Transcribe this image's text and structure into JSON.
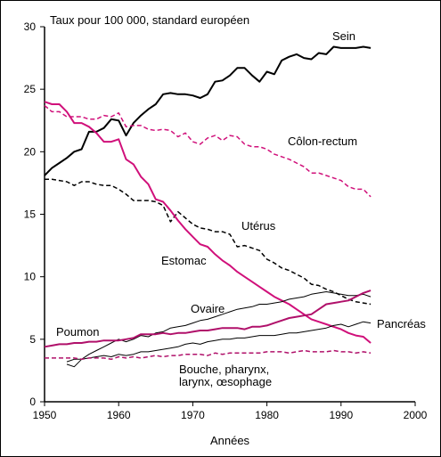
{
  "chart_data": {
    "type": "line",
    "title": "Taux pour 100 000, standard européen",
    "xlabel": "Années",
    "ylabel": "",
    "xlim": [
      1950,
      2000
    ],
    "ylim": [
      0,
      30
    ],
    "x_ticks": [
      1950,
      1960,
      1970,
      1980,
      1990,
      2000
    ],
    "y_ticks": [
      0,
      5,
      10,
      15,
      20,
      25,
      30
    ],
    "grid": false,
    "legend": "none (series labelled directly on the plot)",
    "series": [
      {
        "name": "Sein",
        "color": "#000000",
        "dash": "solid",
        "width": 2,
        "x": [
          1950,
          1951,
          1952,
          1953,
          1954,
          1955,
          1956,
          1957,
          1958,
          1959,
          1960,
          1961,
          1962,
          1963,
          1964,
          1965,
          1966,
          1967,
          1968,
          1969,
          1970,
          1971,
          1972,
          1973,
          1974,
          1975,
          1976,
          1977,
          1978,
          1979,
          1980,
          1981,
          1982,
          1983,
          1984,
          1985,
          1986,
          1987,
          1988,
          1989,
          1990,
          1991,
          1992,
          1993,
          1994
        ],
        "values": [
          18.1,
          18.7,
          19.1,
          19.5,
          20.0,
          20.2,
          21.6,
          21.6,
          21.9,
          22.6,
          22.5,
          21.3,
          22.3,
          22.9,
          23.4,
          23.8,
          24.6,
          24.7,
          24.6,
          24.6,
          24.5,
          24.3,
          24.6,
          25.6,
          25.7,
          26.1,
          26.7,
          26.7,
          26.1,
          25.6,
          26.4,
          26.2,
          27.3,
          27.6,
          27.8,
          27.5,
          27.4,
          27.9,
          27.8,
          28.4,
          28.3,
          28.3,
          28.3,
          28.4,
          28.3
        ]
      },
      {
        "name": "Côlon-rectum",
        "color": "#d0107a",
        "dash": "dashed",
        "width": 1.5,
        "x": [
          1950,
          1951,
          1952,
          1953,
          1954,
          1955,
          1956,
          1957,
          1958,
          1959,
          1960,
          1961,
          1962,
          1963,
          1964,
          1965,
          1966,
          1967,
          1968,
          1969,
          1970,
          1971,
          1972,
          1973,
          1974,
          1975,
          1976,
          1977,
          1978,
          1979,
          1980,
          1981,
          1982,
          1983,
          1984,
          1985,
          1986,
          1987,
          1988,
          1989,
          1990,
          1991,
          1992,
          1993,
          1994
        ],
        "values": [
          23.7,
          23.2,
          23.2,
          22.8,
          22.8,
          22.8,
          22.6,
          22.6,
          22.9,
          22.8,
          23.1,
          22.0,
          22.1,
          22.1,
          21.8,
          21.7,
          21.8,
          21.7,
          21.2,
          21.5,
          20.8,
          20.6,
          21.1,
          21.3,
          20.9,
          21.3,
          21.2,
          20.6,
          20.4,
          20.4,
          20.2,
          19.8,
          19.6,
          19.4,
          19.1,
          18.8,
          18.3,
          18.3,
          18.1,
          17.9,
          17.7,
          17.2,
          17.0,
          17.0,
          16.4
        ]
      },
      {
        "name": "Utérus",
        "color": "#000000",
        "dash": "dashed",
        "width": 1.5,
        "x": [
          1950,
          1951,
          1952,
          1953,
          1954,
          1955,
          1956,
          1957,
          1958,
          1959,
          1960,
          1961,
          1962,
          1963,
          1964,
          1965,
          1966,
          1967,
          1968,
          1969,
          1970,
          1971,
          1972,
          1973,
          1974,
          1975,
          1976,
          1977,
          1978,
          1979,
          1980,
          1981,
          1982,
          1983,
          1984,
          1985,
          1986,
          1987,
          1988,
          1989,
          1990,
          1991,
          1992,
          1993,
          1994
        ],
        "values": [
          17.8,
          17.8,
          17.7,
          17.6,
          17.3,
          17.6,
          17.6,
          17.4,
          17.3,
          17.3,
          17.0,
          16.6,
          16.1,
          16.1,
          16.1,
          16.0,
          15.7,
          14.4,
          15.2,
          14.7,
          14.2,
          13.9,
          13.8,
          13.6,
          13.6,
          13.4,
          12.4,
          12.5,
          12.3,
          12.1,
          11.4,
          11.1,
          10.7,
          10.5,
          10.2,
          9.9,
          9.4,
          9.3,
          9.0,
          8.8,
          8.5,
          8.2,
          8.0,
          7.9,
          7.8
        ]
      },
      {
        "name": "Estomac",
        "color": "#d0107a",
        "dash": "solid",
        "width": 2,
        "x": [
          1950,
          1951,
          1952,
          1953,
          1954,
          1955,
          1956,
          1957,
          1958,
          1959,
          1960,
          1961,
          1962,
          1963,
          1964,
          1965,
          1966,
          1967,
          1968,
          1969,
          1970,
          1971,
          1972,
          1973,
          1974,
          1975,
          1976,
          1977,
          1978,
          1979,
          1980,
          1981,
          1982,
          1983,
          1984,
          1985,
          1986,
          1987,
          1988,
          1989,
          1990,
          1991,
          1992,
          1993,
          1994
        ],
        "values": [
          24.0,
          23.8,
          23.8,
          23.2,
          22.3,
          22.3,
          22.0,
          21.5,
          20.8,
          20.8,
          21.0,
          19.4,
          19.0,
          18.0,
          17.4,
          16.2,
          16.0,
          15.3,
          14.5,
          13.8,
          13.2,
          12.6,
          12.4,
          11.8,
          11.3,
          10.9,
          10.4,
          10.0,
          9.6,
          9.2,
          8.8,
          8.4,
          8.1,
          7.8,
          7.4,
          7.0,
          6.6,
          6.4,
          6.2,
          6.0,
          5.8,
          5.5,
          5.3,
          5.2,
          4.7
        ]
      },
      {
        "name": "Ovaire",
        "color": "#000000",
        "dash": "solid",
        "width": 1,
        "x": [
          1953,
          1954,
          1955,
          1956,
          1957,
          1958,
          1959,
          1960,
          1961,
          1962,
          1963,
          1964,
          1965,
          1966,
          1967,
          1968,
          1969,
          1970,
          1971,
          1972,
          1973,
          1974,
          1975,
          1976,
          1977,
          1978,
          1979,
          1980,
          1981,
          1982,
          1983,
          1984,
          1985,
          1986,
          1987,
          1988,
          1989,
          1990,
          1991,
          1992,
          1993,
          1994
        ],
        "values": [
          3.0,
          2.8,
          3.4,
          3.8,
          4.1,
          4.4,
          4.7,
          5.0,
          4.8,
          5.0,
          5.3,
          5.2,
          5.5,
          5.6,
          5.9,
          6.0,
          6.1,
          6.3,
          6.5,
          6.6,
          6.8,
          7.0,
          7.2,
          7.4,
          7.5,
          7.6,
          7.8,
          7.8,
          7.9,
          8.0,
          8.2,
          8.3,
          8.4,
          8.6,
          8.7,
          8.8,
          8.7,
          8.6,
          8.5,
          8.5,
          8.6,
          8.4
        ]
      },
      {
        "name": "Pancréas",
        "color": "#000000",
        "dash": "solid",
        "width": 1,
        "x": [
          1953,
          1954,
          1955,
          1956,
          1957,
          1958,
          1959,
          1960,
          1961,
          1962,
          1963,
          1964,
          1965,
          1966,
          1967,
          1968,
          1969,
          1970,
          1971,
          1972,
          1973,
          1974,
          1975,
          1976,
          1977,
          1978,
          1979,
          1980,
          1981,
          1982,
          1983,
          1984,
          1985,
          1986,
          1987,
          1988,
          1989,
          1990,
          1991,
          1992,
          1993,
          1994
        ],
        "values": [
          3.2,
          3.4,
          3.4,
          3.5,
          3.6,
          3.7,
          3.6,
          3.8,
          3.7,
          3.8,
          4.0,
          4.0,
          4.1,
          4.2,
          4.3,
          4.4,
          4.6,
          4.7,
          4.6,
          4.8,
          4.9,
          5.0,
          5.0,
          5.1,
          5.1,
          5.2,
          5.3,
          5.3,
          5.3,
          5.4,
          5.5,
          5.5,
          5.6,
          5.7,
          5.8,
          5.9,
          6.1,
          6.2,
          6.0,
          6.2,
          6.4,
          6.3
        ]
      },
      {
        "name": "Poumon",
        "color": "#b0106a",
        "dash": "solid",
        "width": 2,
        "x": [
          1950,
          1951,
          1952,
          1953,
          1954,
          1955,
          1956,
          1957,
          1958,
          1959,
          1960,
          1961,
          1962,
          1963,
          1964,
          1965,
          1966,
          1967,
          1968,
          1969,
          1970,
          1971,
          1972,
          1973,
          1974,
          1975,
          1976,
          1977,
          1978,
          1979,
          1980,
          1981,
          1982,
          1983,
          1984,
          1985,
          1986,
          1987,
          1988,
          1989,
          1990,
          1991,
          1992,
          1993,
          1994
        ],
        "values": [
          4.4,
          4.5,
          4.6,
          4.6,
          4.7,
          4.7,
          4.8,
          4.8,
          4.9,
          4.9,
          4.9,
          5.0,
          5.1,
          5.4,
          5.4,
          5.4,
          5.5,
          5.4,
          5.5,
          5.5,
          5.6,
          5.7,
          5.7,
          5.8,
          5.9,
          5.9,
          5.9,
          5.8,
          6.0,
          6.0,
          6.1,
          6.3,
          6.5,
          6.7,
          6.8,
          6.9,
          7.0,
          7.4,
          7.8,
          7.9,
          8.0,
          8.1,
          8.4,
          8.7,
          8.9
        ]
      },
      {
        "name": "Bouche, pharynx, larynx, œsophage",
        "color": "#b0106a",
        "dash": "dashed",
        "width": 1.5,
        "x": [
          1950,
          1951,
          1952,
          1953,
          1954,
          1955,
          1956,
          1957,
          1958,
          1959,
          1960,
          1961,
          1962,
          1963,
          1964,
          1965,
          1966,
          1967,
          1968,
          1969,
          1970,
          1971,
          1972,
          1973,
          1974,
          1975,
          1976,
          1977,
          1978,
          1979,
          1980,
          1981,
          1982,
          1983,
          1984,
          1985,
          1986,
          1987,
          1988,
          1989,
          1990,
          1991,
          1992,
          1993,
          1994
        ],
        "values": [
          3.5,
          3.5,
          3.5,
          3.5,
          3.5,
          3.4,
          3.5,
          3.5,
          3.5,
          3.4,
          3.6,
          3.5,
          3.6,
          3.5,
          3.6,
          3.7,
          3.6,
          3.7,
          3.7,
          3.8,
          3.8,
          3.8,
          3.7,
          3.9,
          3.8,
          3.9,
          3.9,
          3.9,
          3.9,
          3.9,
          4.0,
          4.0,
          4.0,
          3.9,
          4.0,
          4.1,
          4.0,
          4.0,
          4.0,
          4.1,
          4.0,
          4.0,
          3.9,
          4.0,
          3.9
        ]
      }
    ],
    "annotations": [
      {
        "text": "Sein"
      },
      {
        "text": "Côlon-rectum"
      },
      {
        "text": "Utérus"
      },
      {
        "text": "Estomac"
      },
      {
        "text": "Ovaire"
      },
      {
        "text": "Poumon"
      },
      {
        "text": "Pancréas"
      },
      {
        "text": "Bouche, pharynx,"
      },
      {
        "text": "larynx, œsophage"
      }
    ]
  }
}
